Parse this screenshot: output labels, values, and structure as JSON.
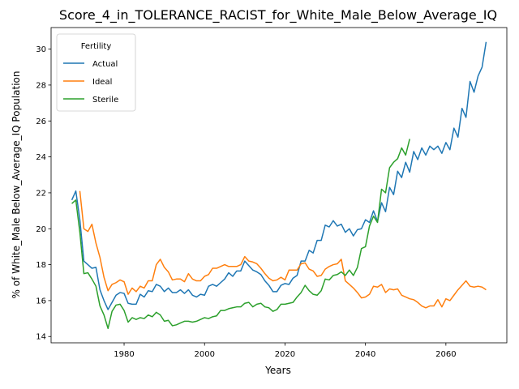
{
  "chart_data": {
    "type": "line",
    "title": "Score_4_in_TOLERANCE_RACIST_for_White_Male_Below_Average_IQ",
    "x_label": "Years",
    "y_label": "% of White_Male Below_Average_IQ Population",
    "legend_title": "Fertility",
    "legend_position": "upper left",
    "x": [
      1967,
      1968,
      1969,
      1970,
      1971,
      1972,
      1973,
      1974,
      1975,
      1976,
      1977,
      1978,
      1979,
      1980,
      1981,
      1982,
      1983,
      1984,
      1985,
      1986,
      1987,
      1988,
      1989,
      1990,
      1991,
      1992,
      1993,
      1994,
      1995,
      1996,
      1997,
      1998,
      1999,
      2000,
      2001,
      2002,
      2003,
      2004,
      2005,
      2006,
      2007,
      2008,
      2009,
      2010,
      2011,
      2012,
      2013,
      2014,
      2015,
      2016,
      2017,
      2018,
      2019,
      2020,
      2021,
      2022,
      2023,
      2024,
      2025,
      2026,
      2027,
      2028,
      2029,
      2030,
      2031,
      2032,
      2033,
      2034,
      2035,
      2036,
      2037,
      2038,
      2039,
      2040,
      2041,
      2042,
      2043,
      2044,
      2045,
      2046,
      2047,
      2048,
      2049,
      2050,
      2051,
      2052,
      2053,
      2054,
      2055,
      2056,
      2057,
      2058,
      2059,
      2060,
      2061,
      2062,
      2063,
      2064,
      2065,
      2066,
      2067,
      2068,
      2069,
      2070
    ],
    "series": [
      {
        "name": "Actual",
        "color": "#1f77b4",
        "values": [
          21.6,
          22.1,
          20.5,
          18.2,
          18.0,
          17.8,
          17.85,
          16.6,
          16.0,
          15.5,
          15.9,
          16.3,
          16.45,
          16.4,
          15.85,
          15.8,
          15.8,
          16.35,
          16.2,
          16.55,
          16.5,
          16.9,
          16.8,
          16.5,
          16.7,
          16.45,
          16.45,
          16.6,
          16.4,
          16.6,
          16.3,
          16.2,
          16.35,
          16.3,
          16.8,
          16.9,
          16.8,
          17.0,
          17.2,
          17.55,
          17.35,
          17.65,
          17.65,
          18.2,
          17.95,
          17.7,
          17.6,
          17.45,
          17.1,
          16.85,
          16.5,
          16.5,
          16.85,
          16.95,
          16.9,
          17.25,
          17.4,
          18.2,
          18.2,
          18.8,
          18.65,
          19.35,
          19.35,
          20.2,
          20.1,
          20.45,
          20.15,
          20.25,
          19.8,
          20.0,
          19.6,
          19.95,
          20.0,
          20.5,
          20.35,
          21.0,
          20.4,
          21.45,
          20.95,
          22.3,
          21.9,
          23.2,
          22.85,
          23.7,
          23.15,
          24.3,
          23.85,
          24.5,
          24.1,
          24.6,
          24.4,
          24.6,
          24.2,
          24.8,
          24.4,
          25.6,
          25.1,
          26.7,
          26.2,
          28.2,
          27.6,
          28.5,
          29.0,
          30.4
        ]
      },
      {
        "name": "Ideal",
        "color": "#ff7f0e",
        "values": [
          null,
          null,
          22.1,
          20.0,
          19.85,
          20.25,
          19.2,
          18.4,
          17.3,
          16.55,
          16.9,
          17.0,
          17.15,
          17.05,
          16.35,
          16.7,
          16.5,
          16.8,
          16.7,
          17.1,
          17.1,
          18.0,
          18.3,
          17.85,
          17.6,
          17.15,
          17.2,
          17.2,
          17.05,
          17.5,
          17.2,
          17.1,
          17.1,
          17.35,
          17.45,
          17.8,
          17.8,
          17.9,
          18.0,
          17.9,
          17.9,
          17.9,
          18.0,
          18.45,
          18.2,
          18.15,
          18.05,
          17.8,
          17.5,
          17.25,
          17.1,
          17.15,
          17.3,
          17.15,
          17.7,
          17.7,
          17.7,
          18.05,
          18.1,
          17.75,
          17.65,
          17.35,
          17.4,
          17.75,
          17.9,
          18.0,
          18.05,
          18.3,
          17.1,
          16.9,
          16.7,
          16.45,
          16.15,
          16.2,
          16.35,
          16.8,
          16.75,
          16.9,
          16.45,
          16.65,
          16.6,
          16.65,
          16.3,
          16.2,
          16.1,
          16.05,
          15.9,
          15.7,
          15.6,
          15.7,
          15.7,
          16.05,
          15.65,
          16.1,
          16.0,
          16.3,
          16.6,
          16.85,
          17.1,
          16.8,
          16.75,
          16.8,
          16.75,
          16.6
        ]
      },
      {
        "name": "Sterile",
        "color": "#2ca02c",
        "values": [
          21.4,
          21.6,
          19.8,
          17.5,
          17.55,
          17.2,
          16.8,
          15.7,
          15.2,
          14.45,
          15.4,
          15.75,
          15.8,
          15.45,
          14.8,
          15.05,
          14.95,
          15.05,
          15.0,
          15.2,
          15.1,
          15.35,
          15.2,
          14.85,
          14.9,
          14.6,
          14.65,
          14.75,
          14.85,
          14.85,
          14.8,
          14.85,
          14.95,
          15.05,
          15.0,
          15.1,
          15.15,
          15.45,
          15.45,
          15.55,
          15.6,
          15.65,
          15.65,
          15.85,
          15.9,
          15.65,
          15.8,
          15.85,
          15.65,
          15.6,
          15.4,
          15.5,
          15.8,
          15.8,
          15.85,
          15.9,
          16.2,
          16.45,
          16.85,
          16.55,
          16.35,
          16.3,
          16.55,
          17.2,
          17.15,
          17.4,
          17.45,
          17.6,
          17.4,
          17.7,
          17.4,
          17.85,
          18.9,
          19.0,
          20.15,
          20.7,
          20.35,
          22.2,
          22.0,
          23.4,
          23.7,
          23.9,
          24.5,
          24.1,
          25.0,
          null,
          null,
          null,
          null,
          null,
          null,
          null,
          null,
          null,
          null,
          null,
          null,
          null,
          null,
          null,
          null,
          null,
          null,
          null
        ]
      }
    ],
    "xlim": [
      1961.85,
      2075.15
    ],
    "xticks": [
      1980,
      2000,
      2020,
      2040,
      2060
    ],
    "ylim": [
      13.65,
      31.2
    ],
    "yticks": [
      14,
      16,
      18,
      20,
      22,
      24,
      26,
      28,
      30
    ],
    "grid": false
  }
}
